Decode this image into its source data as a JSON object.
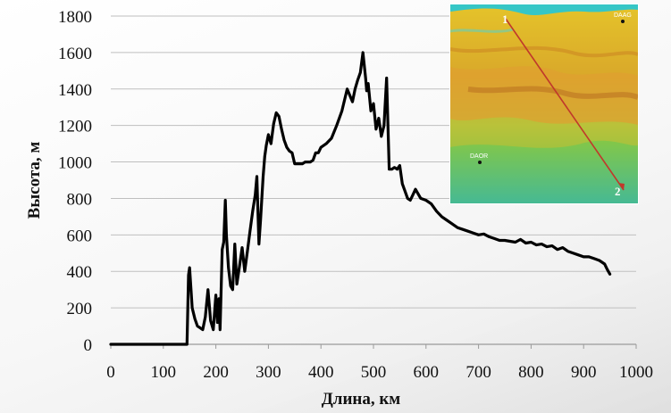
{
  "chart_data": {
    "type": "line",
    "xlabel": "Длина, км",
    "ylabel": "Высота, м",
    "xlim": [
      0,
      1000
    ],
    "ylim": [
      0,
      1800
    ],
    "x_ticks": [
      "0",
      "100",
      "200",
      "300",
      "400",
      "500",
      "600",
      "700",
      "800",
      "900",
      "1000"
    ],
    "y_ticks": [
      "0",
      "200",
      "400",
      "600",
      "800",
      "1000",
      "1200",
      "1400",
      "1600",
      "1800"
    ],
    "grid": "horizontal",
    "line_color": "#000000",
    "series": [
      {
        "x": [
          0,
          100,
          145,
          148,
          150,
          155,
          160,
          165,
          170,
          175,
          180,
          185,
          190,
          195,
          200,
          203,
          206,
          208,
          212,
          215,
          218,
          220,
          224,
          228,
          232,
          236,
          240,
          245,
          250,
          255,
          260,
          265,
          270,
          275,
          278,
          282,
          285,
          290,
          293,
          296,
          300,
          305,
          310,
          315,
          320,
          325,
          330,
          335,
          340,
          345,
          350,
          355,
          360,
          365,
          370,
          380,
          385,
          390,
          395,
          400,
          410,
          420,
          430,
          440,
          450,
          460,
          465,
          470,
          475,
          480,
          485,
          487,
          490,
          495,
          500,
          505,
          510,
          515,
          520,
          525,
          530,
          535,
          540,
          545,
          550,
          555,
          560,
          565,
          570,
          575,
          580,
          590,
          600,
          610,
          620,
          630,
          640,
          650,
          660,
          670,
          680,
          690,
          700,
          710,
          720,
          730,
          740,
          750,
          760,
          770,
          780,
          790,
          800,
          810,
          820,
          830,
          840,
          850,
          860,
          870,
          880,
          890,
          900,
          910,
          920,
          930,
          935,
          940,
          945,
          950
        ],
        "y": [
          0,
          0,
          0,
          380,
          420,
          200,
          140,
          100,
          90,
          80,
          150,
          300,
          130,
          80,
          270,
          120,
          250,
          80,
          520,
          560,
          790,
          600,
          420,
          320,
          300,
          550,
          330,
          430,
          530,
          400,
          510,
          620,
          730,
          820,
          920,
          550,
          680,
          920,
          1030,
          1090,
          1150,
          1100,
          1210,
          1270,
          1250,
          1180,
          1120,
          1080,
          1060,
          1050,
          990,
          990,
          990,
          990,
          1000,
          1000,
          1010,
          1050,
          1050,
          1080,
          1100,
          1130,
          1200,
          1280,
          1400,
          1330,
          1400,
          1450,
          1490,
          1600,
          1460,
          1390,
          1430,
          1280,
          1320,
          1180,
          1240,
          1140,
          1200,
          1460,
          960,
          960,
          970,
          960,
          980,
          880,
          840,
          800,
          790,
          820,
          850,
          800,
          790,
          770,
          730,
          700,
          680,
          660,
          640,
          630,
          620,
          610,
          600,
          605,
          590,
          580,
          570,
          570,
          565,
          560,
          575,
          555,
          560,
          545,
          550,
          535,
          540,
          520,
          530,
          510,
          500,
          490,
          480,
          480,
          470,
          460,
          450,
          440,
          410,
          385
        ]
      }
    ]
  },
  "inset_map": {
    "point_1": "1",
    "point_2": "2",
    "station_top": "DAAG",
    "station_left": "DAOR"
  }
}
